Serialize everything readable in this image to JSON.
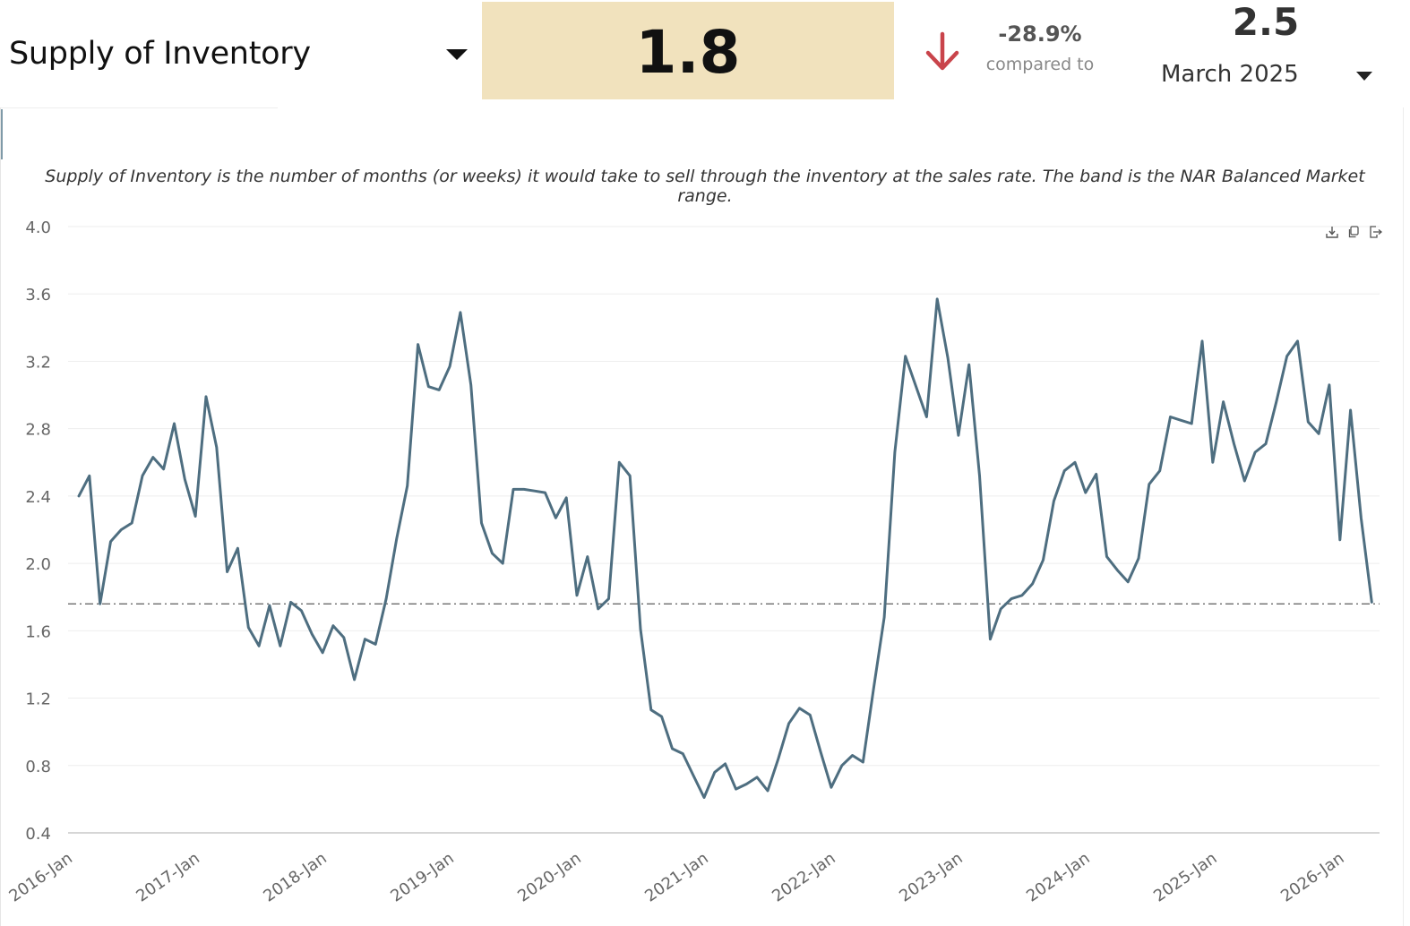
{
  "header": {
    "metric_title": "Supply of Inventory",
    "current_value": "1.8",
    "change_pct": "-28.9%",
    "compared_to_label": "compared to",
    "compare_value": "2.5",
    "compare_period": "March 2025",
    "arrow_color": "#c9444b",
    "value_box_color": "#f1e2bd"
  },
  "description": "Supply of Inventory is the number of months (or weeks) it would take to sell through the inventory at the sales rate. The band is the NAR Balanced Market range.",
  "toolbar": {
    "icons": [
      "download-icon",
      "copy-icon",
      "export-icon"
    ]
  },
  "chart_data": {
    "type": "line",
    "title": "",
    "xlabel": "",
    "ylabel": "",
    "ylim": [
      0.4,
      4.0
    ],
    "yticks": [
      0.4,
      0.8,
      1.2,
      1.6,
      2.0,
      2.4,
      2.8,
      3.2,
      3.6,
      4.0
    ],
    "ytick_labels": [
      "0.4",
      "0.8",
      "1.2",
      "1.6",
      "2.0",
      "2.4",
      "2.8",
      "3.2",
      "3.6",
      "4.0"
    ],
    "xtick_labels": [
      "2016-Jan",
      "2017-Jan",
      "2018-Jan",
      "2019-Jan",
      "2020-Jan",
      "2021-Jan",
      "2022-Jan",
      "2023-Jan",
      "2024-Jan",
      "2025-Jan",
      "2026-Jan"
    ],
    "x_start": "2016-01",
    "line_color": "#4e6e80",
    "reference_line": {
      "value": 1.76,
      "style": "dash-dot"
    },
    "grid": true,
    "series": [
      {
        "name": "Supply of Inventory",
        "values": [
          2.4,
          2.52,
          1.76,
          2.13,
          2.2,
          2.24,
          2.52,
          2.63,
          2.56,
          2.83,
          2.5,
          2.28,
          2.99,
          2.69,
          1.95,
          2.09,
          1.62,
          1.51,
          1.75,
          1.51,
          1.77,
          1.72,
          1.58,
          1.47,
          1.63,
          1.56,
          1.31,
          1.55,
          1.52,
          1.79,
          2.15,
          2.46,
          3.3,
          3.05,
          3.03,
          3.17,
          3.49,
          3.06,
          2.24,
          2.06,
          2.0,
          2.44,
          2.44,
          2.43,
          2.42,
          2.27,
          2.39,
          1.81,
          2.04,
          1.73,
          1.79,
          2.6,
          2.52,
          1.61,
          1.13,
          1.09,
          0.9,
          0.87,
          0.74,
          0.61,
          0.76,
          0.81,
          0.66,
          0.69,
          0.73,
          0.65,
          0.84,
          1.05,
          1.14,
          1.1,
          0.88,
          0.67,
          0.8,
          0.86,
          0.82,
          1.26,
          1.68,
          2.66,
          3.23,
          3.05,
          2.87,
          3.57,
          3.22,
          2.76,
          3.18,
          2.52,
          1.55,
          1.73,
          1.79,
          1.81,
          1.88,
          2.02,
          2.37,
          2.55,
          2.6,
          2.42,
          2.53,
          2.04,
          1.96,
          1.89,
          2.03,
          2.47,
          2.55,
          2.87,
          2.85,
          2.83,
          3.32,
          2.6,
          2.96,
          2.71,
          2.49,
          2.66,
          2.71,
          2.96,
          3.23,
          3.32,
          2.84,
          2.77,
          3.06,
          2.14,
          2.91,
          2.27,
          1.77
        ]
      }
    ]
  }
}
